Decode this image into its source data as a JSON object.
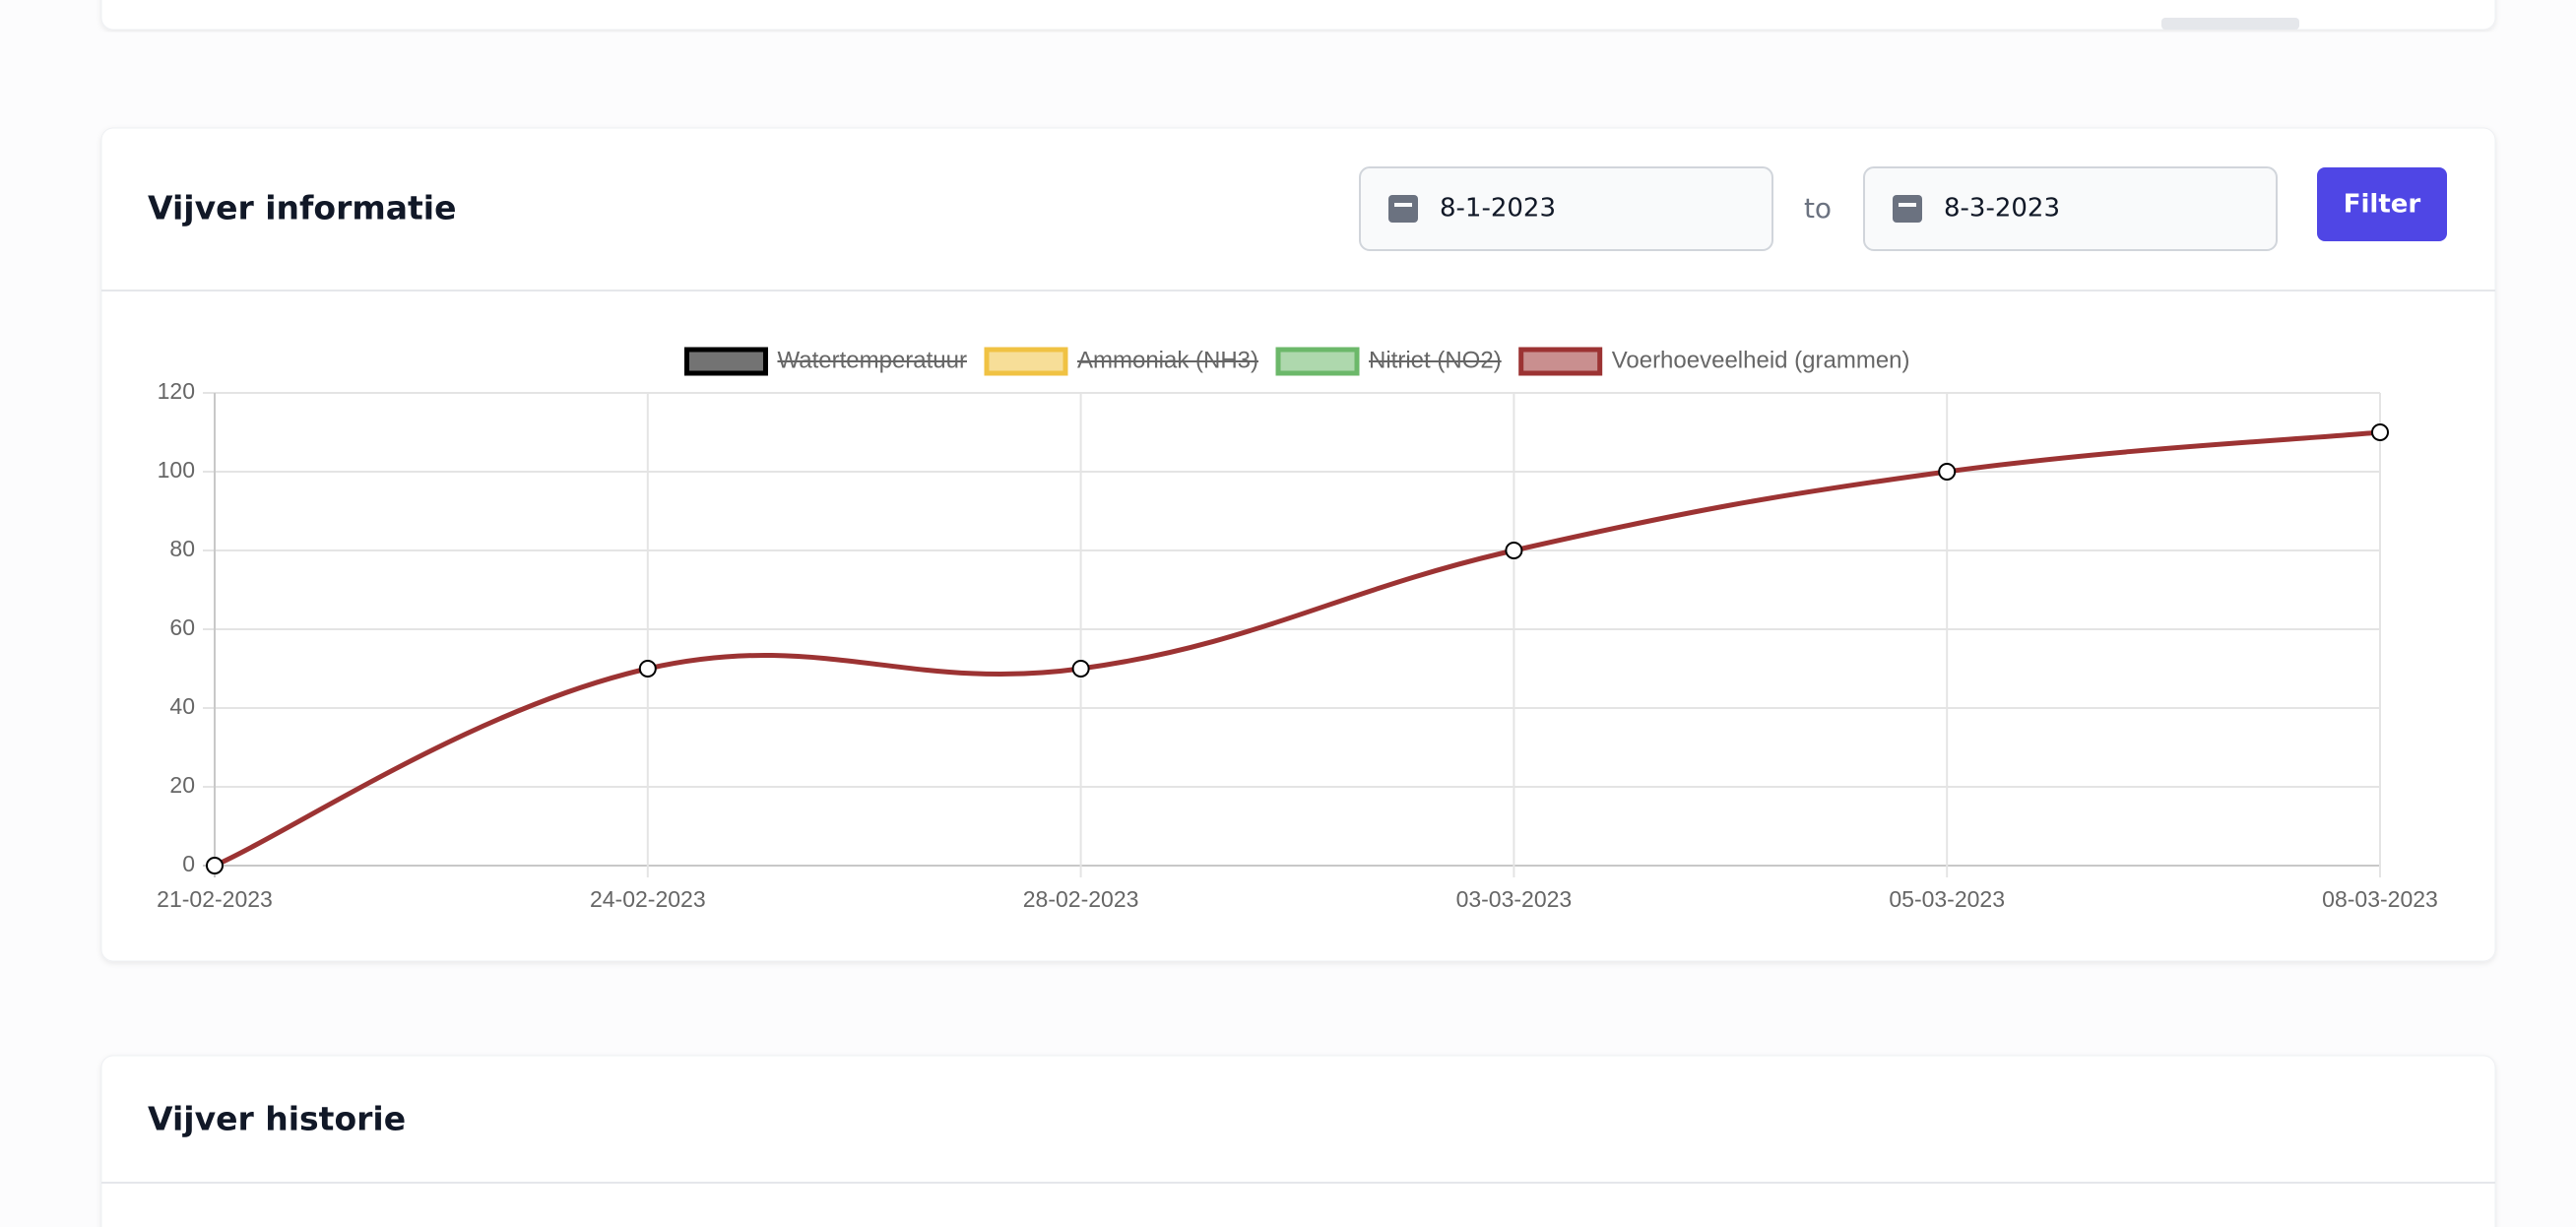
{
  "header": {
    "title": "Vijver informatie"
  },
  "filter": {
    "from": "8-1-2023",
    "separator": "to",
    "to": "8-3-2023",
    "button": "Filter"
  },
  "chart_data": {
    "type": "line",
    "categories": [
      "21-02-2023",
      "24-02-2023",
      "28-02-2023",
      "03-03-2023",
      "05-03-2023",
      "08-03-2023"
    ],
    "series": [
      {
        "name": "Watertemperatuur",
        "color": "#000000",
        "hidden": true
      },
      {
        "name": "Ammoniak (NH3)",
        "color": "#f0c243",
        "hidden": true
      },
      {
        "name": "Nitriet (NO2)",
        "color": "#6cb86a",
        "hidden": true
      },
      {
        "name": "Voerhoeveelheid (grammen)",
        "color": "#9c3333",
        "values": [
          0,
          50,
          50,
          80,
          100,
          110
        ]
      }
    ],
    "ylim": [
      0,
      120
    ],
    "yticks": [
      0,
      20,
      40,
      60,
      80,
      100,
      120
    ],
    "grid": true,
    "legend": "top"
  },
  "history": {
    "title": "Vijver historie"
  }
}
